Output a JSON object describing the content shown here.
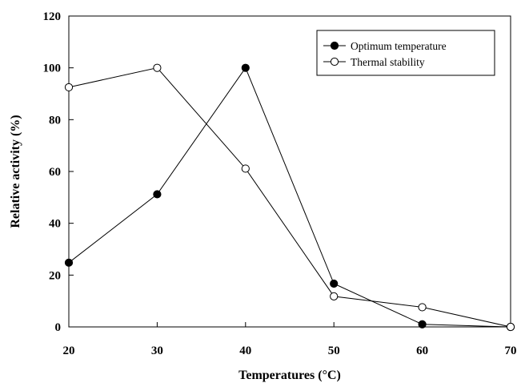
{
  "chart_data": {
    "type": "line",
    "title": "",
    "xlabel": "Temperatures (°C)",
    "ylabel": "Relative activity (%)",
    "xlim": [
      20,
      70
    ],
    "ylim": [
      0,
      120
    ],
    "xticks": [
      20,
      30,
      40,
      50,
      60,
      70
    ],
    "yticks": [
      0,
      20,
      40,
      60,
      80,
      100,
      120
    ],
    "grid": false,
    "legend_position": "top-right",
    "series": [
      {
        "name": "Optimum temperature",
        "marker": "filled-circle",
        "color": "#000000",
        "x": [
          20,
          30,
          40,
          50,
          60,
          70
        ],
        "y": [
          24.8,
          51.2,
          100,
          16.7,
          1,
          0
        ]
      },
      {
        "name": "Thermal stability",
        "marker": "open-circle",
        "color": "#000000",
        "x": [
          20,
          30,
          40,
          50,
          60,
          70
        ],
        "y": [
          92.5,
          100,
          61.1,
          11.8,
          7.6,
          0
        ]
      }
    ]
  }
}
